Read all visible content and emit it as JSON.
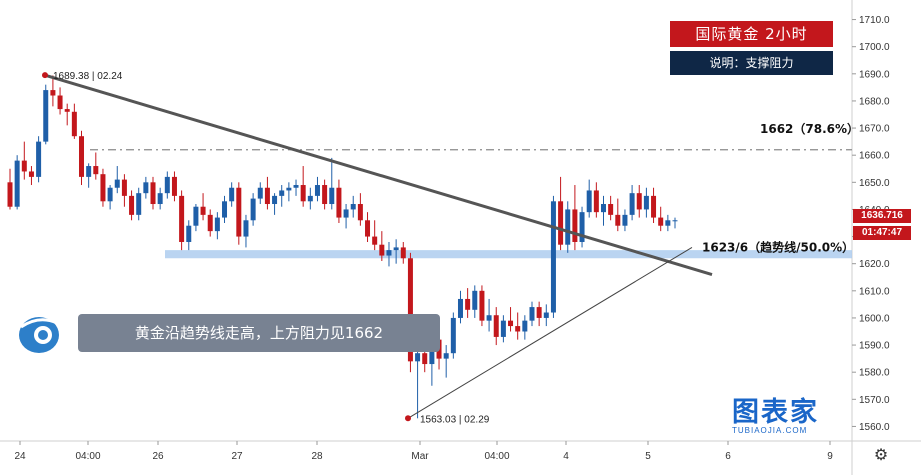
{
  "header": {
    "title": "国际黄金 2小时",
    "note": "说明：支撑阻力"
  },
  "commentary": "黄金沿趋势线走高，上方阻力见1662",
  "logo": {
    "main": "图表家",
    "sub": "TUBIAOJIA.COM"
  },
  "current_price": "1636.716",
  "countdown": "01:47:47",
  "colors": {
    "up": "#1f5fa8",
    "down": "#c3171c",
    "trendline": "#555555",
    "support_band": "#aecdee"
  },
  "icons": {
    "avatar": "avatar-icon",
    "settings": "gear-icon"
  },
  "chart_data": {
    "type": "candlestick",
    "instrument": "国际黄金",
    "timeframe": "2小时",
    "ylim": [
      1555,
      1715
    ],
    "y_ticks": [
      1560,
      1570,
      1580,
      1590,
      1600,
      1610,
      1620,
      1630,
      1640,
      1650,
      1660,
      1670,
      1680,
      1690,
      1700,
      1710
    ],
    "x_ticks": [
      "24",
      "04:00",
      "26",
      "27",
      "28",
      "Mar",
      "04:00",
      "4",
      "5",
      "6",
      "9"
    ],
    "annotations": {
      "high_label": "1689.38 | 02.24",
      "low_label": "1563.03 | 02.29",
      "resistance_label": "1662（78.6%）",
      "support_label": "1623/6（趋势线/50.0%）"
    },
    "levels": {
      "resistance": 1662,
      "support_band": [
        1622,
        1625
      ]
    },
    "candles": [
      [
        1650,
        1655,
        1640,
        1641
      ],
      [
        1641,
        1660,
        1640,
        1658
      ],
      [
        1658,
        1665,
        1651,
        1654
      ],
      [
        1654,
        1656,
        1649,
        1652
      ],
      [
        1652,
        1667,
        1650,
        1665
      ],
      [
        1665,
        1686,
        1664,
        1684
      ],
      [
        1684,
        1689.4,
        1678,
        1682
      ],
      [
        1682,
        1685,
        1675,
        1677
      ],
      [
        1677,
        1679,
        1671,
        1676
      ],
      [
        1676,
        1679,
        1666,
        1667
      ],
      [
        1667,
        1669,
        1649,
        1652
      ],
      [
        1652,
        1657,
        1648,
        1656
      ],
      [
        1656,
        1661,
        1651,
        1653
      ],
      [
        1653,
        1655,
        1641,
        1643
      ],
      [
        1643,
        1649,
        1640,
        1648
      ],
      [
        1648,
        1656,
        1646,
        1651
      ],
      [
        1651,
        1653,
        1641,
        1645
      ],
      [
        1645,
        1647,
        1636,
        1638
      ],
      [
        1638,
        1648,
        1636,
        1646
      ],
      [
        1646,
        1652,
        1644,
        1650
      ],
      [
        1650,
        1652,
        1640,
        1642
      ],
      [
        1642,
        1648,
        1640,
        1646
      ],
      [
        1646,
        1654,
        1644,
        1652
      ],
      [
        1652,
        1654,
        1643,
        1645
      ],
      [
        1645,
        1647,
        1625,
        1628
      ],
      [
        1628,
        1636,
        1625,
        1634
      ],
      [
        1634,
        1642,
        1632,
        1641
      ],
      [
        1641,
        1646,
        1636,
        1638
      ],
      [
        1638,
        1640,
        1630,
        1632
      ],
      [
        1632,
        1639,
        1629,
        1637
      ],
      [
        1637,
        1645,
        1635,
        1643
      ],
      [
        1643,
        1650,
        1641,
        1648
      ],
      [
        1648,
        1650,
        1627,
        1630
      ],
      [
        1630,
        1638,
        1626,
        1636
      ],
      [
        1636,
        1646,
        1634,
        1644
      ],
      [
        1644,
        1650,
        1642,
        1648
      ],
      [
        1648,
        1652,
        1640,
        1642
      ],
      [
        1642,
        1646,
        1638,
        1645
      ],
      [
        1645,
        1649,
        1641,
        1647
      ],
      [
        1647,
        1650,
        1643,
        1648
      ],
      [
        1648,
        1651,
        1645,
        1649
      ],
      [
        1649,
        1656,
        1641,
        1643
      ],
      [
        1643,
        1648,
        1640,
        1645
      ],
      [
        1645,
        1652,
        1643,
        1649
      ],
      [
        1649,
        1651,
        1640,
        1642
      ],
      [
        1642,
        1659,
        1640,
        1648
      ],
      [
        1648,
        1651,
        1635,
        1637
      ],
      [
        1637,
        1642,
        1633,
        1640
      ],
      [
        1640,
        1645,
        1637,
        1642
      ],
      [
        1642,
        1646,
        1634,
        1636
      ],
      [
        1636,
        1639,
        1628,
        1630
      ],
      [
        1630,
        1636,
        1625,
        1627
      ],
      [
        1627,
        1632,
        1621,
        1623
      ],
      [
        1623,
        1628,
        1619,
        1625
      ],
      [
        1625,
        1629,
        1620,
        1626
      ],
      [
        1626,
        1628,
        1620,
        1622
      ],
      [
        1622,
        1624,
        1580,
        1584
      ],
      [
        1584,
        1590,
        1563,
        1587
      ],
      [
        1587,
        1596,
        1580,
        1583
      ],
      [
        1583,
        1598,
        1575,
        1592
      ],
      [
        1592,
        1598,
        1581,
        1585
      ],
      [
        1585,
        1590,
        1578,
        1587
      ],
      [
        1587,
        1602,
        1585,
        1600
      ],
      [
        1600,
        1610,
        1598,
        1607
      ],
      [
        1607,
        1611,
        1600,
        1603
      ],
      [
        1603,
        1612,
        1600,
        1610
      ],
      [
        1610,
        1612,
        1597,
        1599
      ],
      [
        1599,
        1607,
        1595,
        1601
      ],
      [
        1601,
        1604,
        1590,
        1593
      ],
      [
        1593,
        1601,
        1591,
        1599
      ],
      [
        1599,
        1604,
        1595,
        1597
      ],
      [
        1597,
        1602,
        1592,
        1595
      ],
      [
        1595,
        1601,
        1592,
        1599
      ],
      [
        1599,
        1606,
        1597,
        1604
      ],
      [
        1604,
        1606,
        1597,
        1600
      ],
      [
        1600,
        1605,
        1597,
        1602
      ],
      [
        1602,
        1645,
        1600,
        1643
      ],
      [
        1643,
        1652,
        1625,
        1627
      ],
      [
        1627,
        1643,
        1624,
        1640
      ],
      [
        1640,
        1649,
        1625,
        1628
      ],
      [
        1628,
        1641,
        1626,
        1639
      ],
      [
        1639,
        1651,
        1637,
        1647
      ],
      [
        1647,
        1650,
        1637,
        1639
      ],
      [
        1639,
        1645,
        1634,
        1642
      ],
      [
        1642,
        1645,
        1636,
        1638
      ],
      [
        1638,
        1644,
        1632,
        1634
      ],
      [
        1634,
        1640,
        1632,
        1638
      ],
      [
        1638,
        1649,
        1636,
        1646
      ],
      [
        1646,
        1649,
        1637,
        1640
      ],
      [
        1640,
        1648,
        1637,
        1645
      ],
      [
        1645,
        1648,
        1635,
        1637
      ],
      [
        1637,
        1641,
        1632,
        1634
      ],
      [
        1634,
        1638,
        1632,
        1636
      ],
      [
        1636,
        1637,
        1633,
        1636
      ]
    ]
  }
}
